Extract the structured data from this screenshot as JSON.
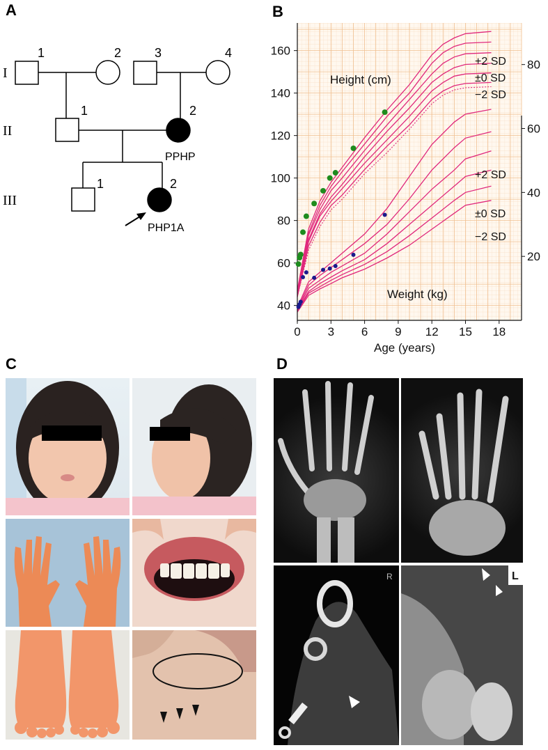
{
  "panels": {
    "a": {
      "letter": "A"
    },
    "b": {
      "letter": "B"
    },
    "c": {
      "letter": "C"
    },
    "d": {
      "letter": "D"
    }
  },
  "pedigree": {
    "generations": [
      "I",
      "II",
      "III"
    ],
    "individuals": [
      {
        "id": "I-1",
        "number": "1",
        "sex": "male",
        "affected": false
      },
      {
        "id": "I-2",
        "number": "2",
        "sex": "female",
        "affected": false
      },
      {
        "id": "I-3",
        "number": "3",
        "sex": "male",
        "affected": false
      },
      {
        "id": "I-4",
        "number": "4",
        "sex": "female",
        "affected": false
      },
      {
        "id": "II-1",
        "number": "1",
        "sex": "male",
        "affected": false
      },
      {
        "id": "II-2",
        "number": "2",
        "sex": "female",
        "affected": true,
        "label": "PPHP"
      },
      {
        "id": "III-1",
        "number": "1",
        "sex": "male",
        "affected": false
      },
      {
        "id": "III-2",
        "number": "2",
        "sex": "female",
        "affected": true,
        "label": "PHP1A",
        "proband": true
      }
    ]
  },
  "growth_chart": {
    "height_label": "Height (cm)",
    "weight_label": "Weight (kg)",
    "sd_labels": {
      "plus2": "+2 SD",
      "zero": "±0 SD",
      "minus2": "−2 SD"
    },
    "colors": {
      "curve": "#e0287c",
      "grid_fine": "#f7dcc0",
      "grid_major": "#f0bf90",
      "height_point": "#1e8c1e",
      "weight_point": "#1a1a8c"
    }
  },
  "chart_data": {
    "type": "scatter",
    "xlabel": "Age (years)",
    "ylabel": "",
    "xlim": [
      0,
      20
    ],
    "x_ticks": [
      "0",
      "3",
      "6",
      "9",
      "12",
      "15",
      "18"
    ],
    "height_axis": {
      "ylim": [
        33,
        173
      ],
      "ticks": [
        "40",
        "60",
        "80",
        "100",
        "120",
        "140",
        "160"
      ]
    },
    "weight_axis": {
      "ylim": [
        0,
        93
      ],
      "ticks": [
        "20",
        "40",
        "60",
        "80"
      ]
    },
    "grid": true,
    "series": [
      {
        "name": "Height (cm)",
        "axis": "left",
        "x": [
          0.1,
          0.2,
          0.3,
          0.5,
          0.8,
          1.5,
          2.3,
          2.9,
          3.4,
          5.0,
          7.8
        ],
        "y": [
          59.5,
          62.5,
          64.0,
          74.5,
          82.0,
          88.0,
          94.0,
          100.0,
          102.5,
          114.0,
          131.0
        ]
      },
      {
        "name": "Weight (kg)",
        "axis": "right",
        "x": [
          0.1,
          0.2,
          0.3,
          0.5,
          0.8,
          1.5,
          2.3,
          2.9,
          3.4,
          5.0,
          7.8
        ],
        "y": [
          4.2,
          5.0,
          5.8,
          13.5,
          15.0,
          13.3,
          15.8,
          16.2,
          17.0,
          20.5,
          33.0
        ]
      }
    ],
    "reference_curves": {
      "height_x": [
        0,
        1,
        2,
        3,
        4,
        6,
        8,
        10,
        11,
        12,
        13,
        14,
        15,
        17.3
      ],
      "height": [
        [
          47,
          76,
          89,
          98,
          105,
          119,
          132,
          144,
          151,
          158,
          163,
          166,
          168,
          169
        ],
        [
          47,
          74,
          87,
          96,
          103,
          116,
          129,
          140,
          147,
          154,
          159,
          162,
          163.5,
          164
        ],
        [
          46,
          73,
          85,
          94,
          100,
          113,
          125,
          137,
          143,
          149,
          154,
          157,
          158.5,
          159
        ],
        [
          45,
          71,
          83,
          91,
          97,
          110,
          122,
          133,
          139,
          145,
          149,
          152,
          153.5,
          154
        ],
        [
          45,
          70,
          82,
          89,
          95,
          107,
          118,
          129,
          135,
          141,
          145,
          148,
          149,
          149.5
        ],
        [
          44,
          68,
          79,
          87,
          92,
          104,
          115,
          125,
          131,
          137,
          141,
          143.5,
          144.5,
          145
        ]
      ],
      "height_dotted": [
        44,
        66,
        77,
        85,
        90,
        102,
        112,
        123,
        129,
        135,
        139,
        141.5,
        142.5,
        143
      ],
      "weight_x": [
        0,
        1,
        2,
        3,
        4,
        6,
        8,
        10,
        12,
        14,
        15,
        17.3
      ],
      "weight": [
        [
          4.0,
          12,
          15,
          18,
          21,
          27,
          35,
          45,
          55,
          62,
          64.5,
          66
        ],
        [
          3.5,
          11,
          14,
          16.5,
          19,
          24,
          30,
          38,
          47,
          54,
          57,
          59
        ],
        [
          3.2,
          10,
          12.5,
          15,
          17,
          21,
          27,
          34,
          41,
          47,
          50.5,
          53
        ],
        [
          3.0,
          9,
          11.5,
          13.5,
          15.5,
          19,
          24,
          30,
          36,
          42,
          45,
          47
        ],
        [
          2.8,
          8.5,
          10.5,
          12.5,
          14.3,
          17.5,
          21.5,
          26.5,
          32,
          37.5,
          40,
          42
        ],
        [
          2.6,
          7.8,
          9.8,
          11.5,
          13.3,
          16,
          19.5,
          23.5,
          28.5,
          33.5,
          36,
          37.5
        ]
      ]
    }
  },
  "figure_c": {
    "icons": [
      "girl-face-photo",
      "girl-profile-photo",
      "hands-photo",
      "teeth-photo",
      "feet-photo",
      "skin-nodule-photo"
    ]
  },
  "figure_d": {
    "labels": {
      "right": "R",
      "left": "L"
    },
    "icons": [
      "hand-radiograph",
      "foot-radiograph",
      "heel-ct",
      "knee-radiograph"
    ]
  }
}
